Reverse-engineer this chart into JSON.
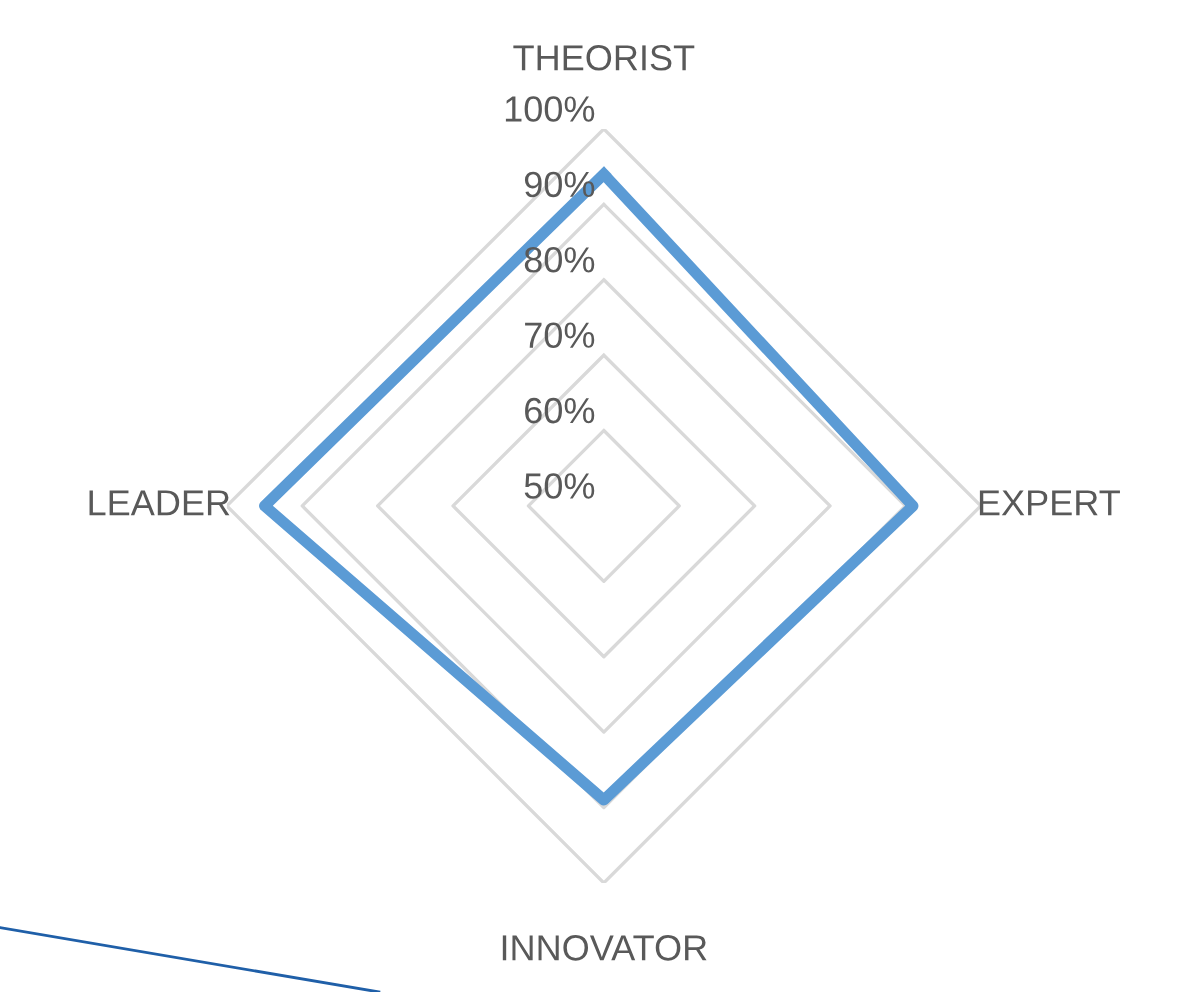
{
  "chart_data": {
    "type": "radar",
    "categories": [
      "THEORIST",
      "EXPERT",
      "INNOVATOR",
      "LEADER"
    ],
    "series": [
      {
        "color": "#5b9bd5",
        "values": [
          94,
          91,
          89,
          95
        ]
      }
    ],
    "ylim": [
      50,
      100
    ],
    "yticks": [
      {
        "value": 50,
        "label": "50%"
      },
      {
        "value": 60,
        "label": "60%"
      },
      {
        "value": 70,
        "label": "70%"
      },
      {
        "value": 80,
        "label": "80%"
      },
      {
        "value": 90,
        "label": "90%"
      },
      {
        "value": 100,
        "label": "100%"
      }
    ],
    "grid": true,
    "marker": "none",
    "line_style": "solid"
  }
}
